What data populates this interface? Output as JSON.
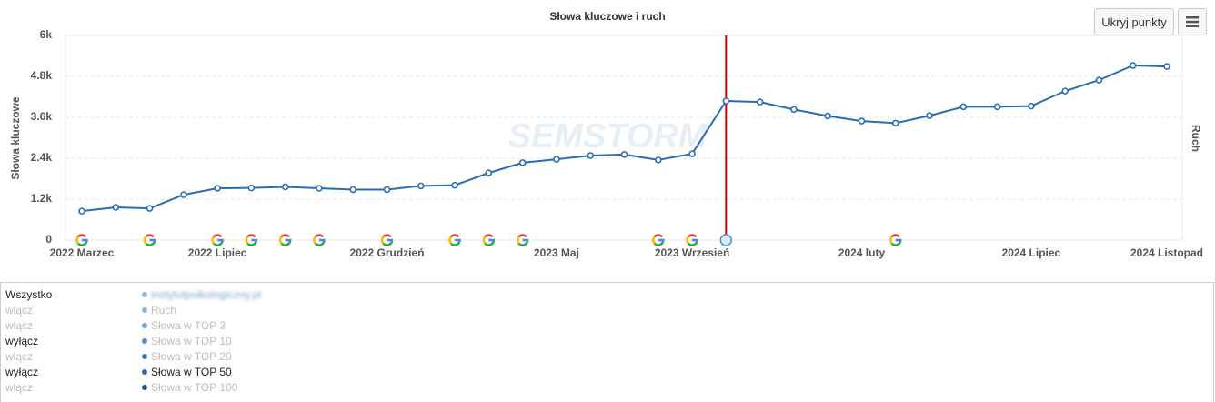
{
  "chart_data": {
    "type": "line",
    "title": "Słowa kluczowe i ruch",
    "y_label": "Słowa kluczowe",
    "y2_label": "Ruch",
    "watermark": "SEMSTORM",
    "categories": [
      "2022 Marzec",
      null,
      null,
      null,
      "2022 Lipiec",
      null,
      null,
      null,
      null,
      "2022 Grudzień",
      null,
      null,
      null,
      null,
      "2023 Maj",
      null,
      null,
      null,
      "2023 Wrzesień",
      null,
      null,
      null,
      null,
      "2024 luty",
      null,
      null,
      null,
      null,
      "2024 Lipiec",
      null,
      null,
      null,
      "2024 Listopad"
    ],
    "series": [
      {
        "name": "Słowa w TOP 50",
        "color": "#2b6cb0",
        "values": [
          850,
          960,
          930,
          1330,
          1520,
          1530,
          1560,
          1520,
          1480,
          1480,
          1590,
          1610,
          1970,
          2270,
          2370,
          2480,
          2510,
          2350,
          2530,
          4080,
          4050,
          3830,
          3640,
          3490,
          3430,
          3650,
          3910,
          3910,
          3930,
          4370,
          4690,
          5120,
          5090
        ]
      }
    ],
    "ylim": [
      0,
      6000
    ],
    "yticks": [
      0,
      {
        "value": 1200,
        "label": "1.2k"
      },
      {
        "value": 2400,
        "label": "2.4k"
      },
      {
        "value": 3600,
        "label": "3.6k"
      },
      {
        "value": 4800,
        "label": "4.8k"
      },
      {
        "value": 6000,
        "label": "6k"
      }
    ],
    "grid": true,
    "event_line": 19,
    "event_line_color": "#d00000",
    "update_markers": [
      0,
      2,
      4,
      5,
      6,
      7,
      9,
      11,
      12,
      13,
      17,
      18,
      24
    ]
  },
  "controls": {
    "hide_points": "Ukryj punkty"
  },
  "legend_panel": {
    "rows": [
      {
        "toggle": "Wszystko",
        "label": "instytutpsikologiczny.pl",
        "color": "#8fb8d8",
        "active": true
      },
      {
        "toggle": "włącz",
        "label": "Ruch",
        "color": "#8ab4e8",
        "active": false
      },
      {
        "toggle": "włącz",
        "label": "Słowa w TOP 3",
        "color": "#6fa3dc",
        "active": false
      },
      {
        "toggle": "wyłącz",
        "label": "Słowa w TOP 10",
        "color": "#4f8fd0",
        "active": false
      },
      {
        "toggle": "włącz",
        "label": "Słowa w TOP 20",
        "color": "#3a7cc2",
        "active": false
      },
      {
        "toggle": "wyłącz",
        "label": "Słowa w TOP 50",
        "color": "#2b6cb0",
        "active": true
      },
      {
        "toggle": "włącz",
        "label": "Słowa w TOP 100",
        "color": "#1b4f8a",
        "active": false
      }
    ]
  }
}
